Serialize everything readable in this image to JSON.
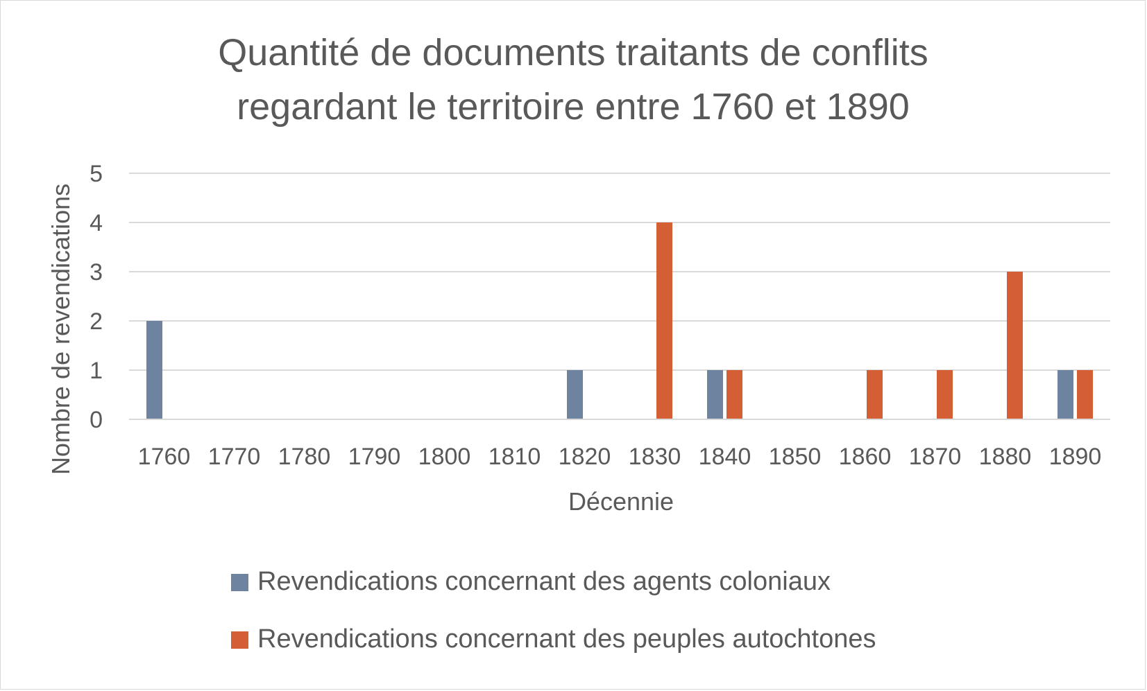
{
  "chart_data": {
    "type": "bar",
    "title_lines": [
      "Quantité de documents traitants de conflits",
      "regardant le territoire entre 1760 et 1890"
    ],
    "xlabel": "Décennie",
    "ylabel": "Nombre de revendications",
    "categories": [
      "1760",
      "1770",
      "1780",
      "1790",
      "1800",
      "1810",
      "1820",
      "1830",
      "1840",
      "1850",
      "1860",
      "1870",
      "1880",
      "1890"
    ],
    "ylim": [
      0,
      5
    ],
    "yticks": [
      "0",
      "1",
      "2",
      "3",
      "4",
      "5"
    ],
    "grid": true,
    "legend_position": "bottom",
    "series": [
      {
        "name": "Revendications concernant des agents coloniaux",
        "color": "#6e83a0",
        "values": [
          2,
          0,
          0,
          0,
          0,
          0,
          1,
          0,
          1,
          0,
          0,
          0,
          0,
          1
        ]
      },
      {
        "name": "Revendications concernant des peuples autochtones",
        "color": "#d45f35",
        "values": [
          0,
          0,
          0,
          0,
          0,
          0,
          0,
          4,
          1,
          0,
          1,
          1,
          3,
          1
        ]
      }
    ]
  }
}
